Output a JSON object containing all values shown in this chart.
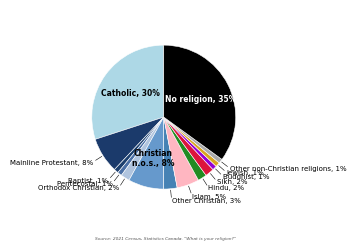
{
  "source": "Source: 2021 Census, Statistics Canada. \"What is your religion?\"",
  "slices": [
    {
      "label": "Catholic, 30%",
      "value": 30,
      "color": "#ADD8E6",
      "text_color": "black",
      "inside": true
    },
    {
      "label": "Mainline Protestant, 8%",
      "value": 8,
      "color": "#1B3A6B",
      "text_color": "white",
      "inside": false
    },
    {
      "label": "Baptist, 1%",
      "value": 1,
      "color": "#1C3F6E",
      "text_color": "white",
      "inside": false
    },
    {
      "label": "Pentecostal, 1%",
      "value": 1,
      "color": "#4A6FA5",
      "text_color": "white",
      "inside": false
    },
    {
      "label": "Orthodox Christian, 2%",
      "value": 2,
      "color": "#B0C4DE",
      "text_color": "black",
      "inside": false
    },
    {
      "label": "Christian\nn.o.s., 8%",
      "value": 8,
      "color": "#6699CC",
      "text_color": "black",
      "inside": true
    },
    {
      "label": "Other Christian, 3%",
      "value": 3,
      "color": "#4682B4",
      "text_color": "white",
      "inside": false
    },
    {
      "label": "Islam, 5%",
      "value": 5,
      "color": "#FFB6C1",
      "text_color": "black",
      "inside": false
    },
    {
      "label": "Hindu, 2%",
      "value": 2,
      "color": "#228B22",
      "text_color": "white",
      "inside": false
    },
    {
      "label": "Sikh, 2%",
      "value": 2,
      "color": "#DC143C",
      "text_color": "white",
      "inside": false
    },
    {
      "label": "Buddhist, 1%",
      "value": 1,
      "color": "#9400D3",
      "text_color": "white",
      "inside": false
    },
    {
      "label": "Jewish, 1%",
      "value": 1,
      "color": "#DAA520",
      "text_color": "white",
      "inside": false
    },
    {
      "label": "Other non-Christian religions, 1%",
      "value": 1,
      "color": "#A9A9A9",
      "text_color": "white",
      "inside": false
    },
    {
      "label": "No religion, 35%",
      "value": 35,
      "color": "#000000",
      "text_color": "white",
      "inside": true
    }
  ],
  "background_color": "#ffffff",
  "startangle": 90
}
